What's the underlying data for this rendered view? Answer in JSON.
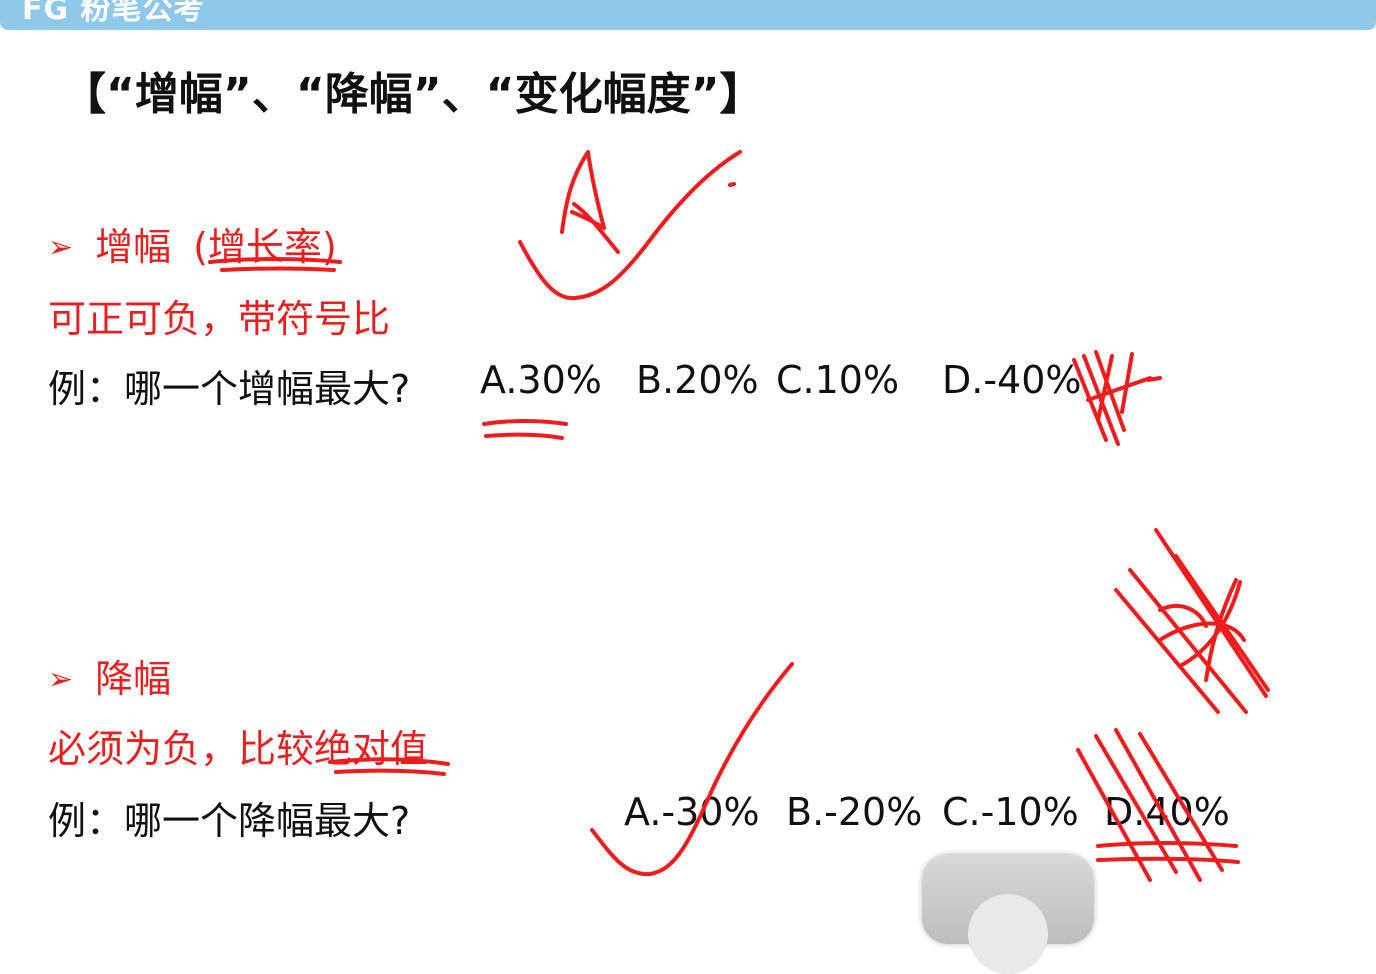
{
  "header": {
    "brand": "FG 粉笔公考"
  },
  "slide": {
    "title": "【“增幅”、“降幅”、“变化幅度”】",
    "section_increase": {
      "bullet_symbol": "➢",
      "heading": "增幅",
      "heading_paren": "(增长率)",
      "rule": "可正可负，带符号比",
      "question": "例：哪一个增幅最大?",
      "options": [
        "A.30%",
        "B.20%",
        "C.10%",
        "D.-40%"
      ]
    },
    "section_decrease": {
      "bullet_symbol": "➢",
      "heading": "降幅",
      "rule": "必须为负，比较绝对值",
      "question": "例：哪一个降幅最大?",
      "options": [
        "A.-30%",
        "B.-20%",
        "C.-10%",
        "D.40%"
      ]
    }
  },
  "colors": {
    "accent_red": "#e81f1f",
    "topbar_blue": "#8fc9ea",
    "text": "#111111"
  },
  "icons": {
    "bullet": "arrowhead-bullet-icon",
    "floating_button": "assistive-touch-icon"
  }
}
